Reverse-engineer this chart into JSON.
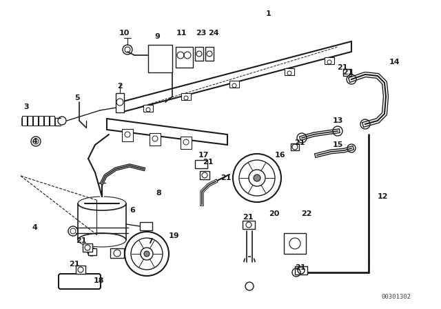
{
  "bg_color": "#ffffff",
  "diagram_color": "#1a1a1a",
  "watermark": "00301302",
  "fig_width": 6.4,
  "fig_height": 4.48
}
